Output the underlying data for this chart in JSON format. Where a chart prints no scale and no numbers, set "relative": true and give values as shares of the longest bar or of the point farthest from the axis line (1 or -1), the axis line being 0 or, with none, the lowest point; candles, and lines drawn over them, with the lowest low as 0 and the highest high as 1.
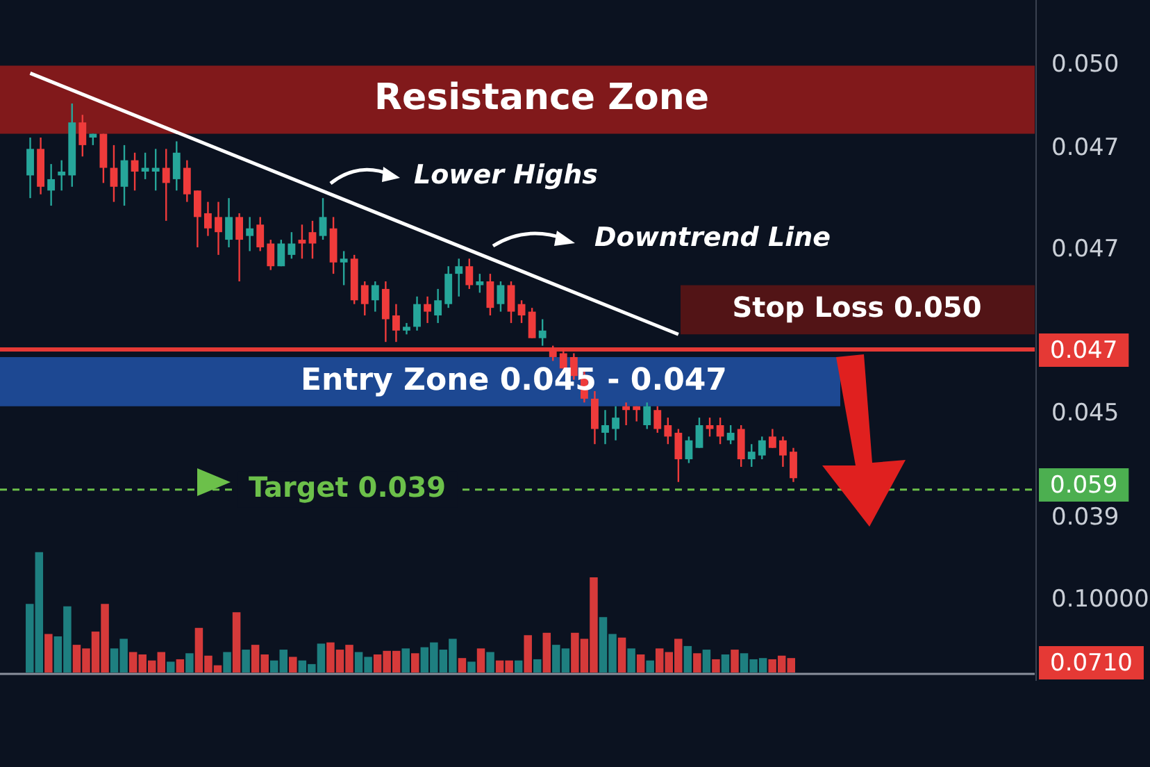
{
  "chart_data": [
    {
      "type": "candlestick",
      "relative": true,
      "categories": [
        null,
        null,
        null,
        null,
        null,
        null,
        null,
        null,
        null,
        null,
        null,
        null,
        null,
        null,
        null,
        null,
        null,
        null,
        null,
        null,
        null,
        null,
        null,
        null,
        null,
        null,
        null,
        null,
        null,
        null,
        null,
        null,
        null,
        null,
        null,
        null,
        null,
        null,
        null,
        null,
        null,
        null,
        null,
        null,
        null,
        null,
        null,
        null,
        null,
        null,
        null,
        null,
        null,
        null,
        null,
        null,
        null,
        null,
        null,
        null,
        null,
        null,
        null,
        null,
        null,
        null,
        null,
        null,
        null,
        null,
        null,
        null,
        null,
        null
      ],
      "ohlc": [
        [
          0.81,
          0.91,
          0.75,
          0.88
        ],
        [
          0.88,
          0.91,
          0.76,
          0.78
        ],
        [
          0.77,
          0.84,
          0.73,
          0.8
        ],
        [
          0.81,
          0.85,
          0.77,
          0.82
        ],
        [
          0.81,
          1.0,
          0.78,
          0.95
        ],
        [
          0.95,
          0.97,
          0.86,
          0.89
        ],
        [
          0.91,
          0.92,
          0.89,
          0.92
        ],
        [
          0.92,
          0.92,
          0.79,
          0.83
        ],
        [
          0.83,
          0.89,
          0.74,
          0.78
        ],
        [
          0.78,
          0.89,
          0.73,
          0.85
        ],
        [
          0.85,
          0.87,
          0.77,
          0.82
        ],
        [
          0.82,
          0.87,
          0.8,
          0.83
        ],
        [
          0.82,
          0.88,
          0.77,
          0.83
        ],
        [
          0.83,
          0.88,
          0.69,
          0.79
        ],
        [
          0.8,
          0.9,
          0.77,
          0.87
        ],
        [
          0.83,
          0.85,
          0.74,
          0.76
        ],
        [
          0.77,
          0.77,
          0.62,
          0.7
        ],
        [
          0.71,
          0.74,
          0.65,
          0.67
        ],
        [
          0.7,
          0.74,
          0.6,
          0.66
        ],
        [
          0.64,
          0.75,
          0.62,
          0.7
        ],
        [
          0.7,
          0.71,
          0.53,
          0.64
        ],
        [
          0.65,
          0.7,
          0.61,
          0.67
        ],
        [
          0.68,
          0.7,
          0.61,
          0.62
        ],
        [
          0.63,
          0.64,
          0.56,
          0.57
        ],
        [
          0.57,
          0.64,
          0.57,
          0.63
        ],
        [
          0.6,
          0.66,
          0.59,
          0.63
        ],
        [
          0.64,
          0.68,
          0.59,
          0.63
        ],
        [
          0.66,
          0.69,
          0.59,
          0.63
        ],
        [
          0.65,
          0.75,
          0.64,
          0.7
        ],
        [
          0.67,
          0.7,
          0.55,
          0.58
        ],
        [
          0.58,
          0.61,
          0.52,
          0.59
        ],
        [
          0.59,
          0.6,
          0.47,
          0.48
        ],
        [
          0.52,
          0.53,
          0.44,
          0.47
        ],
        [
          0.48,
          0.53,
          0.45,
          0.52
        ],
        [
          0.51,
          0.53,
          0.37,
          0.43
        ],
        [
          0.44,
          0.47,
          0.37,
          0.4
        ],
        [
          0.4,
          0.42,
          0.39,
          0.41
        ],
        [
          0.41,
          0.49,
          0.4,
          0.47
        ],
        [
          0.47,
          0.49,
          0.42,
          0.45
        ],
        [
          0.44,
          0.51,
          0.42,
          0.48
        ],
        [
          0.47,
          0.57,
          0.46,
          0.55
        ],
        [
          0.55,
          0.59,
          0.49,
          0.57
        ],
        [
          0.57,
          0.59,
          0.51,
          0.52
        ],
        [
          0.52,
          0.55,
          0.5,
          0.53
        ],
        [
          0.53,
          0.55,
          0.44,
          0.46
        ],
        [
          0.47,
          0.53,
          0.45,
          0.52
        ],
        [
          0.52,
          0.53,
          0.42,
          0.45
        ],
        [
          0.47,
          0.48,
          0.42,
          0.44
        ],
        [
          0.45,
          0.46,
          0.38,
          0.38
        ],
        [
          0.38,
          0.43,
          0.36,
          0.4
        ],
        [
          0.35,
          0.36,
          0.32,
          0.33
        ],
        [
          0.34,
          0.35,
          0.3,
          0.3
        ],
        [
          0.33,
          0.34,
          0.27,
          0.28
        ],
        [
          0.28,
          0.3,
          0.21,
          0.22
        ],
        [
          0.22,
          0.24,
          0.1,
          0.14
        ],
        [
          0.13,
          0.19,
          0.1,
          0.15
        ],
        [
          0.14,
          0.2,
          0.11,
          0.17
        ],
        [
          0.2,
          0.21,
          0.15,
          0.19
        ],
        [
          0.2,
          0.2,
          0.16,
          0.19
        ],
        [
          0.15,
          0.21,
          0.14,
          0.2
        ],
        [
          0.19,
          0.2,
          0.13,
          0.14
        ],
        [
          0.15,
          0.17,
          0.1,
          0.12
        ],
        [
          0.13,
          0.14,
          0.0,
          0.06
        ],
        [
          0.06,
          0.12,
          0.05,
          0.11
        ],
        [
          0.09,
          0.17,
          0.09,
          0.15
        ],
        [
          0.15,
          0.17,
          0.12,
          0.14
        ],
        [
          0.15,
          0.17,
          0.1,
          0.12
        ],
        [
          0.11,
          0.15,
          0.1,
          0.13
        ],
        [
          0.14,
          0.15,
          0.04,
          0.06
        ],
        [
          0.06,
          0.1,
          0.04,
          0.08
        ],
        [
          0.07,
          0.12,
          0.06,
          0.11
        ],
        [
          0.12,
          0.14,
          0.09,
          0.09
        ],
        [
          0.11,
          0.12,
          0.04,
          0.07
        ],
        [
          0.08,
          0.09,
          0.0,
          0.01
        ]
      ],
      "colors": [
        "#26a69a",
        "#ef3b3b",
        "#26a69a",
        "#26a69a",
        "#26a69a",
        "#ef3b3b",
        "#26a69a",
        "#ef3b3b",
        "#ef3b3b",
        "#26a69a",
        "#ef3b3b",
        "#26a69a",
        "#26a69a",
        "#ef3b3b",
        "#26a69a",
        "#ef3b3b",
        "#ef3b3b",
        "#ef3b3b",
        "#ef3b3b",
        "#26a69a",
        "#ef3b3b",
        "#26a69a",
        "#ef3b3b",
        "#ef3b3b",
        "#26a69a",
        "#26a69a",
        "#ef3b3b",
        "#ef3b3b",
        "#26a69a",
        "#ef3b3b",
        "#26a69a",
        "#ef3b3b",
        "#ef3b3b",
        "#26a69a",
        "#ef3b3b",
        "#ef3b3b",
        "#26a69a",
        "#26a69a",
        "#ef3b3b",
        "#26a69a",
        "#26a69a",
        "#26a69a",
        "#ef3b3b",
        "#26a69a",
        "#ef3b3b",
        "#26a69a",
        "#ef3b3b",
        "#ef3b3b",
        "#ef3b3b",
        "#26a69a",
        "#ef3b3b",
        "#ef3b3b",
        "#ef3b3b",
        "#ef3b3b",
        "#ef3b3b",
        "#26a69a",
        "#26a69a",
        "#ef3b3b",
        "#ef3b3b",
        "#26a69a",
        "#ef3b3b",
        "#ef3b3b",
        "#ef3b3b",
        "#26a69a",
        "#26a69a",
        "#ef3b3b",
        "#ef3b3b",
        "#26a69a",
        "#ef3b3b",
        "#26a69a",
        "#26a69a",
        "#ef3b3b",
        "#ef3b3b",
        "#ef3b3b"
      ],
      "series": [
        {
          "type": "line",
          "color": "#ffffff",
          "values": [
            1.08,
            null,
            null,
            null,
            null,
            null,
            null,
            null,
            null,
            null,
            null,
            null,
            null,
            null,
            null,
            null,
            null,
            null,
            null,
            null,
            null,
            null,
            null,
            null,
            null,
            null,
            null,
            null,
            null,
            null,
            null,
            null,
            null,
            null,
            null,
            null,
            null,
            null,
            null,
            null,
            null,
            null,
            null,
            null,
            null,
            null,
            null,
            null,
            null,
            null,
            null,
            null,
            null,
            null,
            null,
            null,
            null,
            null,
            null,
            null,
            null,
            null,
            0.39,
            null,
            null,
            null,
            null,
            null,
            null,
            null,
            null,
            null,
            null,
            null
          ]
        }
      ],
      "bands": [
        {
          "axis": "y",
          "from": 0.92,
          "to": 1.1,
          "label": "Resistance Zone",
          "color": "#8e1b1b"
        },
        {
          "axis": "y",
          "from": 0.2,
          "to": 0.33,
          "label": "Entry Zone 0.045 - 0.047",
          "color": "#1f4f9e"
        },
        {
          "axis": "y",
          "from": 0.39,
          "to": 0.52,
          "label": "Stop Loss 0.050",
          "color": "#5a1515"
        }
      ],
      "ref_lines": [
        {
          "axis": "y",
          "value": 0.35,
          "color": "#e53935"
        },
        {
          "axis": "y",
          "value": -0.02,
          "label": "Target 0.039",
          "color": "#6cc04a",
          "line_style": "dashed"
        }
      ],
      "annotations": [
        "Lower Highs",
        "Downtrend Line",
        "0.050",
        "0.047",
        "0.047",
        "0.047",
        "0.045",
        "0.059",
        "0.039"
      ]
    },
    {
      "type": "bar",
      "relative": true,
      "categories": [
        null,
        null,
        null,
        null,
        null,
        null,
        null,
        null,
        null,
        null,
        null,
        null,
        null,
        null,
        null,
        null,
        null,
        null,
        null,
        null,
        null,
        null,
        null,
        null,
        null,
        null,
        null,
        null,
        null,
        null,
        null,
        null,
        null,
        null,
        null,
        null,
        null,
        null,
        null,
        null,
        null,
        null,
        null,
        null,
        null,
        null,
        null,
        null,
        null,
        null,
        null,
        null,
        null,
        null,
        null,
        null,
        null,
        null,
        null,
        null,
        null,
        null,
        null,
        null,
        null,
        null,
        null,
        null,
        null,
        null,
        null,
        null,
        null,
        null,
        null,
        null,
        null,
        null,
        null,
        null,
        null,
        null
      ],
      "values": [
        0.57,
        1,
        0.32,
        0.3,
        0.55,
        0.23,
        0.2,
        0.34,
        0.57,
        0.2,
        0.28,
        0.17,
        0.15,
        0.1,
        0.17,
        0.09,
        0.11,
        0.16,
        0.37,
        0.14,
        0.06,
        0.17,
        0.5,
        0.19,
        0.23,
        0.15,
        0.1,
        0.19,
        0.13,
        0.1,
        0.07,
        0.24,
        0.25,
        0.19,
        0.23,
        0.17,
        0.13,
        0.15,
        0.18,
        0.18,
        0.2,
        0.16,
        0.21,
        0.25,
        0.19,
        0.28,
        0.12,
        0.09,
        0.2,
        0.17,
        0.1,
        0.1,
        0.1,
        0.31,
        0.11,
        0.33,
        0.23,
        0.2,
        0.33,
        0.28,
        0.79,
        0.46,
        0.32,
        0.29,
        0.2,
        0.15,
        0.1,
        0.2,
        0.17,
        0.28,
        0.22,
        0.16,
        0.19,
        0.11,
        0.15,
        0.19,
        0.16,
        0.11,
        0.12,
        0.11,
        0.14,
        0.12
      ],
      "colors": [
        "#1e7f80",
        "#1e7f80",
        "#d63a3a",
        "#1e7f80",
        "#1e7f80",
        "#d63a3a",
        "#d63a3a",
        "#d63a3a",
        "#d63a3a",
        "#1e7f80",
        "#1e7f80",
        "#d63a3a",
        "#d63a3a",
        "#d63a3a",
        "#d63a3a",
        "#1e7f80",
        "#d63a3a",
        "#1e7f80",
        "#d63a3a",
        "#d63a3a",
        "#d63a3a",
        "#1e7f80",
        "#d63a3a",
        "#1e7f80",
        "#d63a3a",
        "#d63a3a",
        "#1e7f80",
        "#1e7f80",
        "#d63a3a",
        "#1e7f80",
        "#1e7f80",
        "#1e7f80",
        "#d63a3a",
        "#d63a3a",
        "#d63a3a",
        "#1e7f80",
        "#1e7f80",
        "#d63a3a",
        "#d63a3a",
        "#d63a3a",
        "#1e7f80",
        "#d63a3a",
        "#1e7f80",
        "#1e7f80",
        "#1e7f80",
        "#1e7f80",
        "#d63a3a",
        "#1e7f80",
        "#d63a3a",
        "#1e7f80",
        "#d63a3a",
        "#d63a3a",
        "#1e7f80",
        "#d63a3a",
        "#1e7f80",
        "#d63a3a",
        "#1e7f80",
        "#1e7f80",
        "#d63a3a",
        "#d63a3a",
        "#d63a3a",
        "#1e7f80",
        "#1e7f80",
        "#d63a3a",
        "#1e7f80",
        "#d63a3a",
        "#1e7f80",
        "#d63a3a",
        "#d63a3a",
        "#d63a3a",
        "#1e7f80",
        "#d63a3a",
        "#1e7f80",
        "#d63a3a",
        "#1e7f80",
        "#d63a3a",
        "#1e7f80",
        "#1e7f80",
        "#1e7f80",
        "#d63a3a",
        "#d63a3a",
        "#d63a3a"
      ],
      "annotations": [
        "0.10000",
        "0.0710"
      ]
    }
  ]
}
